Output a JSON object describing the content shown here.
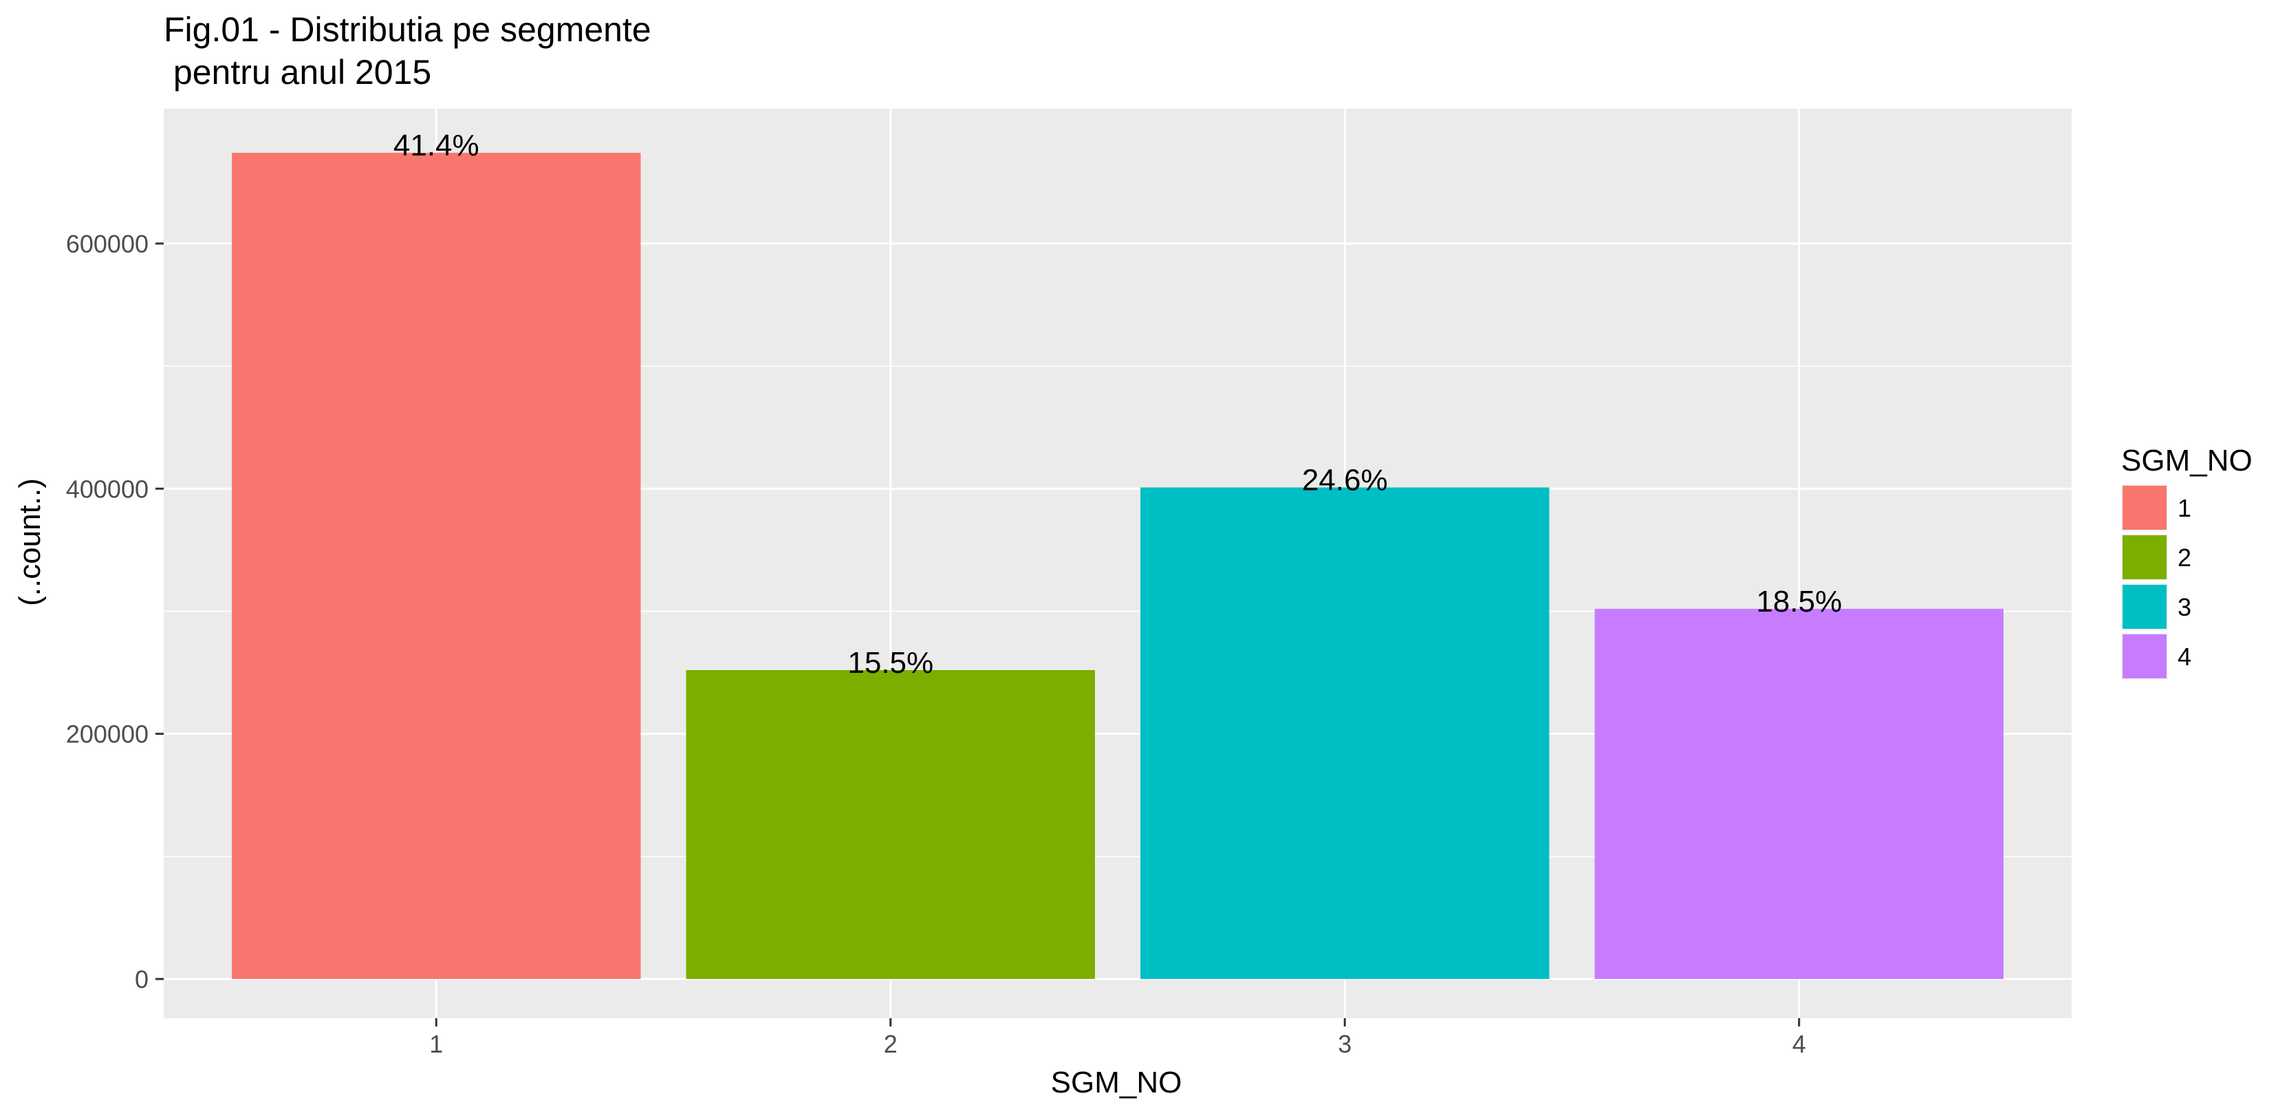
{
  "chart_data": {
    "type": "bar",
    "title": "Fig.01 - Distributia pe segmente",
    "subtitle": " pentru anul 2015",
    "xlabel": "SGM_NO",
    "ylabel": "(..count..)",
    "categories": [
      "1",
      "2",
      "3",
      "4"
    ],
    "values": [
      674000,
      252000,
      401000,
      302000
    ],
    "labels": [
      "41.4%",
      "15.5%",
      "24.6%",
      "18.5%"
    ],
    "colors": [
      "#F8766D",
      "#7CAE00",
      "#00BFC4",
      "#C77CFF"
    ],
    "ylim": [
      -32000,
      710000
    ],
    "yticks": [
      0,
      200000,
      400000,
      600000
    ],
    "ytick_labels": [
      "0",
      "200000",
      "400000",
      "600000"
    ],
    "grid": true,
    "panel_background": "#EBEBEB",
    "legend": {
      "title": "SGM_NO",
      "position": "right",
      "entries": [
        "1",
        "2",
        "3",
        "4"
      ]
    }
  }
}
